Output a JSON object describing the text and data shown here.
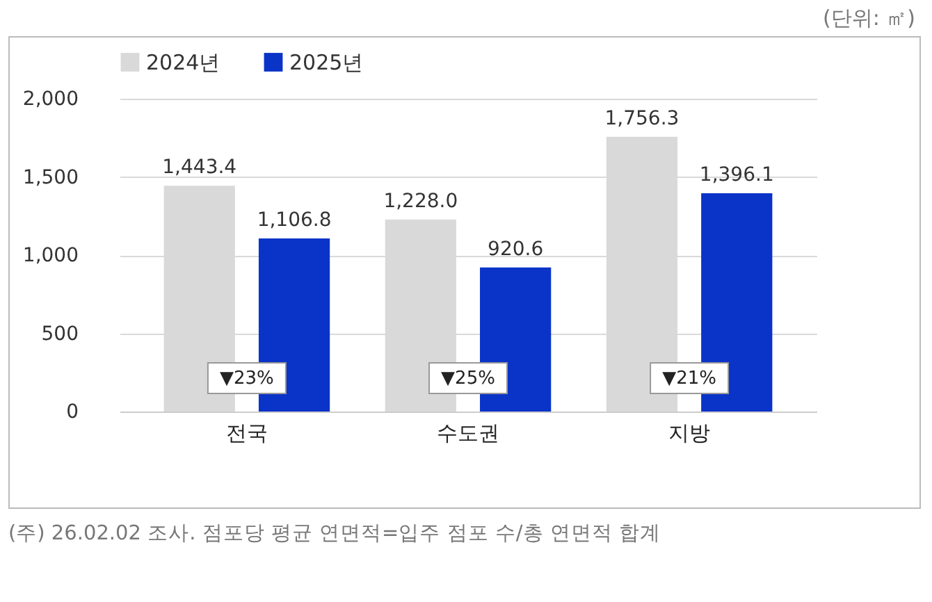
{
  "chart_data": {
    "type": "bar",
    "categories": [
      "전국",
      "수도권",
      "지방"
    ],
    "series": [
      {
        "name": "2024년",
        "color": "#d9d9d9",
        "values": [
          1443.4,
          1228.0,
          1756.3
        ],
        "value_labels": [
          "1,443.4",
          "1,228.0",
          "1,756.3"
        ]
      },
      {
        "name": "2025년",
        "color": "#0a33c8",
        "values": [
          1106.8,
          920.6,
          1396.1
        ],
        "value_labels": [
          "1,106.8",
          "920.6",
          "1,396.1"
        ]
      }
    ],
    "ylim": [
      0,
      2000
    ],
    "yticks": [
      0,
      500,
      {
        "value": 1000,
        "label": "1,000"
      },
      {
        "value": 1500,
        "label": "1,500"
      },
      {
        "value": 2000,
        "label": "2,000"
      }
    ],
    "grid": "y",
    "legend": "top",
    "annotations": [
      "(단위: ㎡)",
      "▼23%",
      "▼25%",
      "▼21%",
      "(주) 26.02.02 조사. 점포당 평균 연면적=입주 점포 수/총 연면적 합계"
    ]
  }
}
